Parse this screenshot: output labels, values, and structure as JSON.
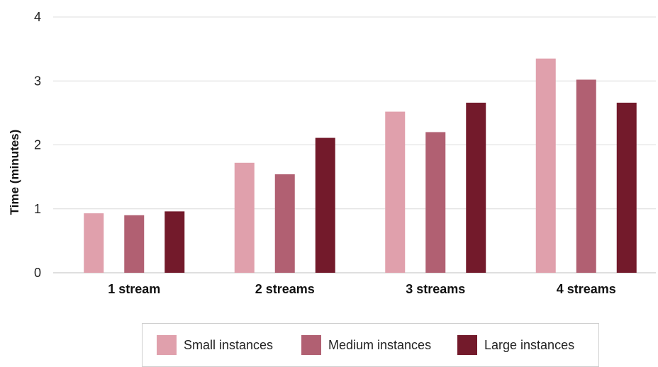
{
  "chart_data": {
    "type": "bar",
    "title": "",
    "xlabel": "",
    "ylabel": "Time (minutes)",
    "ylim": [
      0,
      4
    ],
    "yticks": [
      "0",
      "1",
      "2",
      "3",
      "4"
    ],
    "grid": true,
    "legend_position": "bottom",
    "categories": [
      "1 stream",
      "2 streams",
      "3 streams",
      "4 streams"
    ],
    "series": [
      {
        "name": "Small instances",
        "color": "#e0a0ac",
        "values": [
          0.93,
          1.72,
          2.52,
          3.35
        ]
      },
      {
        "name": "Medium instances",
        "color": "#b16072",
        "values": [
          0.9,
          1.54,
          2.2,
          3.02
        ]
      },
      {
        "name": "Large instances",
        "color": "#731a2b",
        "values": [
          0.96,
          2.11,
          2.66,
          2.66
        ]
      }
    ]
  }
}
